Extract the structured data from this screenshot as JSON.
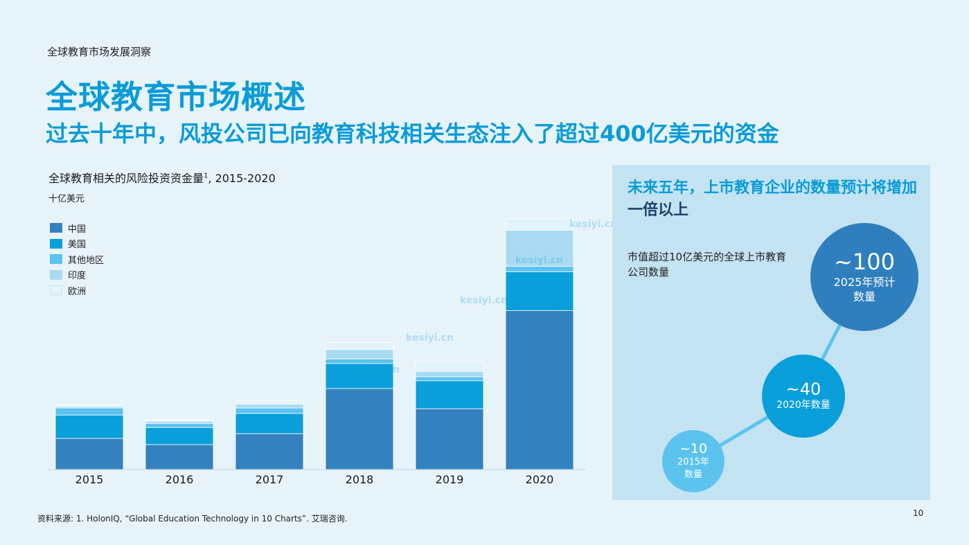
{
  "header": {
    "section_label": "全球教育市场发展洞察",
    "title": "全球教育市场概述",
    "subtitle": "过去十年中，风投公司已向教育科技相关生态注入了超过400亿美元的资金"
  },
  "chart_data": {
    "type": "bar",
    "title": "全球教育相关的风险投资资金量",
    "title_sup": "1",
    "title_suffix": ", 2015-2020",
    "ylabel": "十亿美元",
    "categories": [
      "2015",
      "2016",
      "2017",
      "2018",
      "2019",
      "2020"
    ],
    "stacked": true,
    "ylim": [
      0,
      16
    ],
    "series": [
      {
        "name": "中国",
        "color": "#3381bf",
        "values": [
          2.0,
          1.6,
          2.3,
          5.2,
          3.9,
          10.2
        ]
      },
      {
        "name": "美国",
        "color": "#0a9fda",
        "values": [
          1.5,
          1.1,
          1.3,
          1.6,
          1.8,
          2.5
        ]
      },
      {
        "name": "其他地区",
        "color": "#5bc3ee",
        "values": [
          0.45,
          0.25,
          0.35,
          0.3,
          0.25,
          0.35
        ]
      },
      {
        "name": "印度",
        "color": "#a9daf2",
        "values": [
          0.1,
          0.15,
          0.25,
          0.6,
          0.35,
          2.3
        ]
      },
      {
        "name": "欧洲",
        "color": "#e2f3fb",
        "values": [
          0.1,
          0.1,
          0.2,
          0.45,
          0.65,
          0.75
        ]
      }
    ],
    "legend_position": "top-left",
    "grid": false
  },
  "panel": {
    "title_blue": "未来五年，上市教育企业的数量预计将增加",
    "title_dark": "一倍以上",
    "description": "市值超过10亿美元的全球上市教育公司数量",
    "bubbles": [
      {
        "value": "~10",
        "label1": "2015年",
        "label2": "数量",
        "color": "#5bc3ee"
      },
      {
        "value": "~40",
        "label1": "2020年数量",
        "label2": "",
        "color": "#0a9fda"
      },
      {
        "value": "~100",
        "label1": "2025年预计",
        "label2": "数量",
        "color": "#2f7fbe"
      }
    ],
    "line_color": "#5bc3ee"
  },
  "footer": {
    "source": "资料来源: 1. HolonIQ, “Global Education Technology in 10 Charts”. 艾瑞咨询.",
    "page_number": "10"
  },
  "watermark": {
    "text": "kesiyi.cn"
  }
}
